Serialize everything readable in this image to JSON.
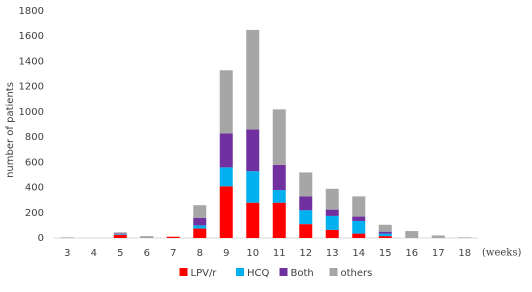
{
  "chart_data": {
    "type": "stacked_bar",
    "y_label": "number of patients",
    "x_annotation": "(weeks)",
    "categories": [
      "3",
      "4",
      "5",
      "6",
      "7",
      "8",
      "9",
      "10",
      "11",
      "12",
      "13",
      "14",
      "15",
      "16",
      "17",
      "18"
    ],
    "series": [
      {
        "name": "LPV/r",
        "color": "#ff0000",
        "values": [
          0,
          0,
          25,
          0,
          10,
          75,
          410,
          280,
          280,
          110,
          65,
          35,
          15,
          0,
          0,
          0
        ]
      },
      {
        "name": "HCQ",
        "color": "#00b0f0",
        "values": [
          0,
          0,
          5,
          0,
          0,
          25,
          150,
          250,
          100,
          110,
          110,
          100,
          20,
          0,
          0,
          0
        ]
      },
      {
        "name": "Both",
        "color": "#7030a0",
        "values": [
          0,
          0,
          5,
          0,
          0,
          60,
          270,
          330,
          200,
          110,
          50,
          35,
          15,
          0,
          0,
          0
        ]
      },
      {
        "name": "others",
        "color": "#a6a6a6",
        "values": [
          5,
          0,
          10,
          15,
          0,
          100,
          500,
          790,
          440,
          190,
          165,
          160,
          55,
          55,
          20,
          5
        ]
      }
    ],
    "ylim": [
      0,
      1800
    ],
    "yticks": [
      0,
      200,
      400,
      600,
      800,
      1000,
      1200,
      1400,
      1600,
      1800
    ],
    "grid": false,
    "legend": "bottom"
  }
}
